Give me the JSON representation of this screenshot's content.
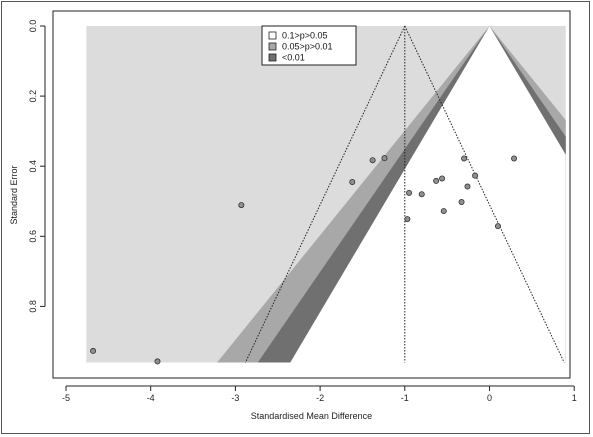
{
  "chart_data": {
    "type": "scatter",
    "subtype": "contour-enhanced funnel plot",
    "xlabel": "Standardised Mean Difference",
    "ylabel": "Standard Error",
    "xlim": [
      -5,
      1
    ],
    "ylim": [
      0.98,
      -0.02
    ],
    "x_ticks": [
      -5,
      -4,
      -3,
      -2,
      -1,
      0,
      1
    ],
    "y_ticks": [
      0.0,
      0.2,
      0.4,
      0.6,
      0.8
    ],
    "y_tick_labels": [
      "0.0",
      "0.2",
      "0.4",
      "0.6",
      "0.8"
    ],
    "y_reversed": true,
    "grid": false,
    "summary_estimate": -1.0,
    "contour_center": 0,
    "se_max": 0.96,
    "contour_region_xmin": -4.76,
    "contour_region_xmax": 0.9,
    "contours": [
      {
        "label": "0.1>p>0.05",
        "z_low": 1.645,
        "z_high": 1.96,
        "color": "#ffffff"
      },
      {
        "label": "0.05>p>0.01",
        "z_low": 1.96,
        "z_high": 2.576,
        "color": "#a8a8a8"
      },
      {
        "label": "<0.01",
        "z_low": 2.576,
        "z_high": null,
        "color": "#707070"
      }
    ],
    "background_color": "#dcdcdc",
    "inner_color": "#ffffff",
    "legend_position": "top-center",
    "points": [
      {
        "x": -4.68,
        "y": 0.927
      },
      {
        "x": -3.92,
        "y": 0.957
      },
      {
        "x": -2.93,
        "y": 0.511
      },
      {
        "x": -1.62,
        "y": 0.445
      },
      {
        "x": -1.38,
        "y": 0.383
      },
      {
        "x": -1.24,
        "y": 0.377
      },
      {
        "x": -0.95,
        "y": 0.476
      },
      {
        "x": -0.97,
        "y": 0.551
      },
      {
        "x": -0.8,
        "y": 0.48
      },
      {
        "x": -0.63,
        "y": 0.442
      },
      {
        "x": -0.56,
        "y": 0.435
      },
      {
        "x": -0.54,
        "y": 0.528
      },
      {
        "x": -0.33,
        "y": 0.502
      },
      {
        "x": -0.3,
        "y": 0.378
      },
      {
        "x": -0.26,
        "y": 0.458
      },
      {
        "x": -0.17,
        "y": 0.427
      },
      {
        "x": 0.1,
        "y": 0.571
      },
      {
        "x": 0.29,
        "y": 0.378
      }
    ]
  }
}
